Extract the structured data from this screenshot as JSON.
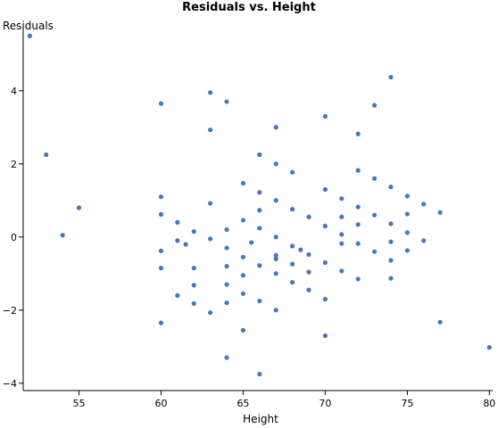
{
  "chart_data": {
    "type": "scatter",
    "title": "Residuals vs. Height",
    "xlabel": "Height",
    "ylabel": "Residuals",
    "xlim": [
      51.6,
      80.2
    ],
    "ylim": [
      -4.2,
      5.75
    ],
    "xticks": [
      55,
      60,
      65,
      70,
      75,
      80
    ],
    "yticks": [
      -4,
      -2,
      0,
      2,
      4
    ],
    "ytick_labels": [
      "−4",
      "−2",
      "0",
      "2",
      "4"
    ],
    "grid": false,
    "marker_color": "#4a77b4",
    "points": [
      [
        52,
        5.5
      ],
      [
        53,
        2.25
      ],
      [
        54,
        0.05
      ],
      [
        55,
        0.8
      ],
      [
        60,
        3.65
      ],
      [
        60,
        1.1
      ],
      [
        60,
        0.62
      ],
      [
        60,
        -0.38
      ],
      [
        60,
        -0.85
      ],
      [
        60,
        -2.35
      ],
      [
        61,
        0.4
      ],
      [
        61,
        -0.1
      ],
      [
        61,
        -1.6
      ],
      [
        61.5,
        -0.2
      ],
      [
        62,
        0.15
      ],
      [
        62,
        -0.85
      ],
      [
        62,
        -1.32
      ],
      [
        62,
        -1.82
      ],
      [
        63,
        3.95
      ],
      [
        63,
        2.93
      ],
      [
        63,
        0.92
      ],
      [
        63,
        -0.05
      ],
      [
        63,
        -2.07
      ],
      [
        64,
        3.7
      ],
      [
        64,
        0.2
      ],
      [
        64,
        -0.3
      ],
      [
        64,
        -0.8
      ],
      [
        64,
        -1.3
      ],
      [
        64,
        -1.8
      ],
      [
        64,
        -3.3
      ],
      [
        65,
        1.47
      ],
      [
        65,
        0.46
      ],
      [
        65,
        -0.55
      ],
      [
        65,
        -1.05
      ],
      [
        65,
        -1.55
      ],
      [
        65,
        -2.55
      ],
      [
        65.5,
        -0.15
      ],
      [
        66,
        2.25
      ],
      [
        66,
        1.22
      ],
      [
        66,
        0.73
      ],
      [
        66,
        0.24
      ],
      [
        66,
        -0.78
      ],
      [
        66,
        -1.75
      ],
      [
        66,
        -3.75
      ],
      [
        67,
        3.0
      ],
      [
        67,
        2.0
      ],
      [
        67,
        1.0
      ],
      [
        67,
        0.0
      ],
      [
        67,
        -0.5
      ],
      [
        67,
        -0.6
      ],
      [
        67,
        -1.0
      ],
      [
        67,
        -2.0
      ],
      [
        68,
        1.77
      ],
      [
        68,
        0.76
      ],
      [
        68,
        -0.25
      ],
      [
        68,
        -0.74
      ],
      [
        68,
        -1.24
      ],
      [
        68.5,
        -0.35
      ],
      [
        69,
        0.55
      ],
      [
        69,
        -0.48
      ],
      [
        69,
        -0.96
      ],
      [
        69,
        -1.45
      ],
      [
        70,
        3.3
      ],
      [
        70,
        1.3
      ],
      [
        70,
        0.3
      ],
      [
        70,
        -0.7
      ],
      [
        70,
        -1.7
      ],
      [
        70,
        -2.7
      ],
      [
        71,
        1.05
      ],
      [
        71,
        0.55
      ],
      [
        71,
        0.07
      ],
      [
        71,
        -0.18
      ],
      [
        71,
        -0.93
      ],
      [
        72,
        2.82
      ],
      [
        72,
        1.82
      ],
      [
        72,
        0.82
      ],
      [
        72,
        0.34
      ],
      [
        72,
        -0.18
      ],
      [
        72,
        -1.15
      ],
      [
        73,
        3.6
      ],
      [
        73,
        1.6
      ],
      [
        73,
        0.6
      ],
      [
        73,
        -0.4
      ],
      [
        74,
        4.37
      ],
      [
        74,
        1.37
      ],
      [
        74,
        0.36
      ],
      [
        74,
        -0.13
      ],
      [
        74,
        -0.64
      ],
      [
        74,
        -1.13
      ],
      [
        75,
        1.12
      ],
      [
        75,
        0.63
      ],
      [
        75,
        0.12
      ],
      [
        75,
        -0.37
      ],
      [
        76,
        0.9
      ],
      [
        76,
        -0.1
      ],
      [
        77,
        0.67
      ],
      [
        77,
        -2.33
      ],
      [
        80,
        -3.02
      ]
    ]
  }
}
